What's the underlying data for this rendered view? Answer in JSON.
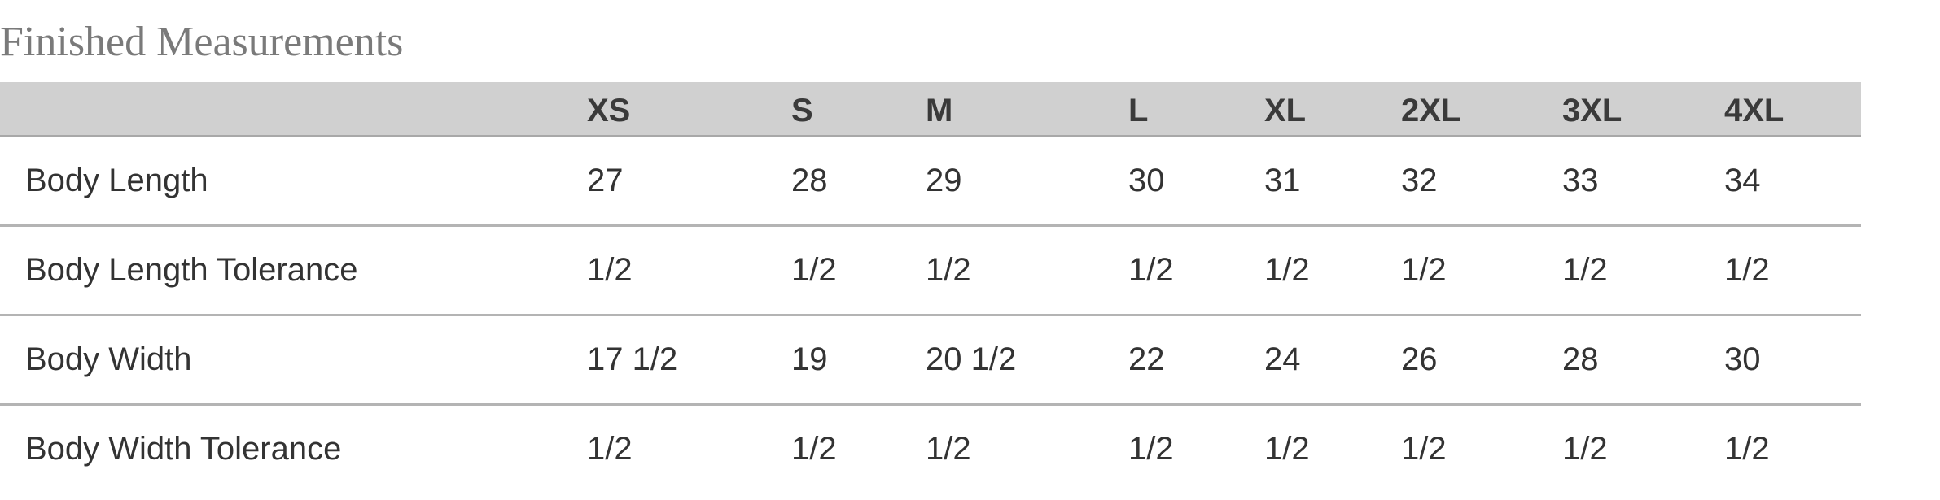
{
  "title": "Finished Measurements",
  "table": {
    "headers": [
      "",
      "XS",
      "S",
      "M",
      "L",
      "XL",
      "2XL",
      "3XL",
      "4XL"
    ],
    "rows": [
      {
        "label": "Body Length",
        "values": [
          "27",
          "28",
          "29",
          "30",
          "31",
          "32",
          "33",
          "34"
        ]
      },
      {
        "label": "Body Length Tolerance",
        "values": [
          "1/2",
          "1/2",
          "1/2",
          "1/2",
          "1/2",
          "1/2",
          "1/2",
          "1/2"
        ]
      },
      {
        "label": "Body Width",
        "values": [
          "17 1/2",
          "19",
          "20 1/2",
          "22",
          "24",
          "26",
          "28",
          "30"
        ]
      },
      {
        "label": "Body Width Tolerance",
        "values": [
          "1/2",
          "1/2",
          "1/2",
          "1/2",
          "1/2",
          "1/2",
          "1/2",
          "1/2"
        ]
      }
    ]
  },
  "colors": {
    "header_bg": "#d0d0d0",
    "title": "#7a7a7a",
    "text": "#333333"
  }
}
